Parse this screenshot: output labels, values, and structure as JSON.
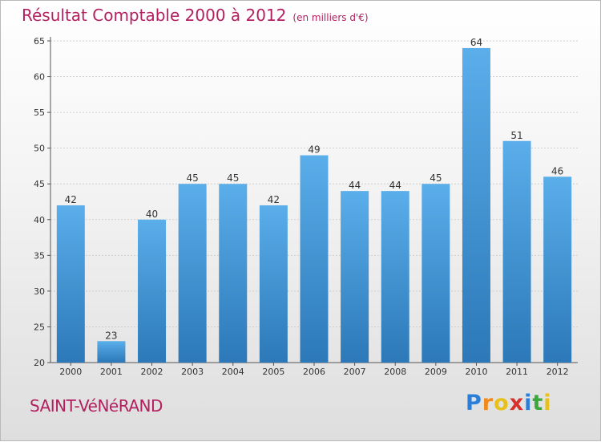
{
  "chart_data": {
    "type": "bar",
    "title": "Résultat Comptable 2000 à 2012",
    "subtitle": "(en milliers d'€)",
    "categories": [
      "2000",
      "2001",
      "2002",
      "2003",
      "2004",
      "2005",
      "2006",
      "2007",
      "2008",
      "2009",
      "2010",
      "2011",
      "2012"
    ],
    "values": [
      42,
      23,
      40,
      45,
      45,
      42,
      49,
      44,
      44,
      45,
      64,
      51,
      46
    ],
    "ylim": [
      20,
      65
    ],
    "yticks": [
      20,
      25,
      30,
      35,
      40,
      45,
      50,
      55,
      60,
      65
    ],
    "xlabel": "",
    "ylabel": "",
    "grid": true,
    "bar_color": "#4a9de0"
  },
  "footer": {
    "town": "SAINT-VéNéRAND",
    "logo_letters": [
      "P",
      "r",
      "o",
      "x",
      "i",
      "t",
      "i"
    ],
    "logo_colors": [
      "#2b7fd8",
      "#f08a1c",
      "#e8c01a",
      "#d8302a",
      "#2b7fd8",
      "#3aa83a",
      "#e8c01a"
    ]
  }
}
